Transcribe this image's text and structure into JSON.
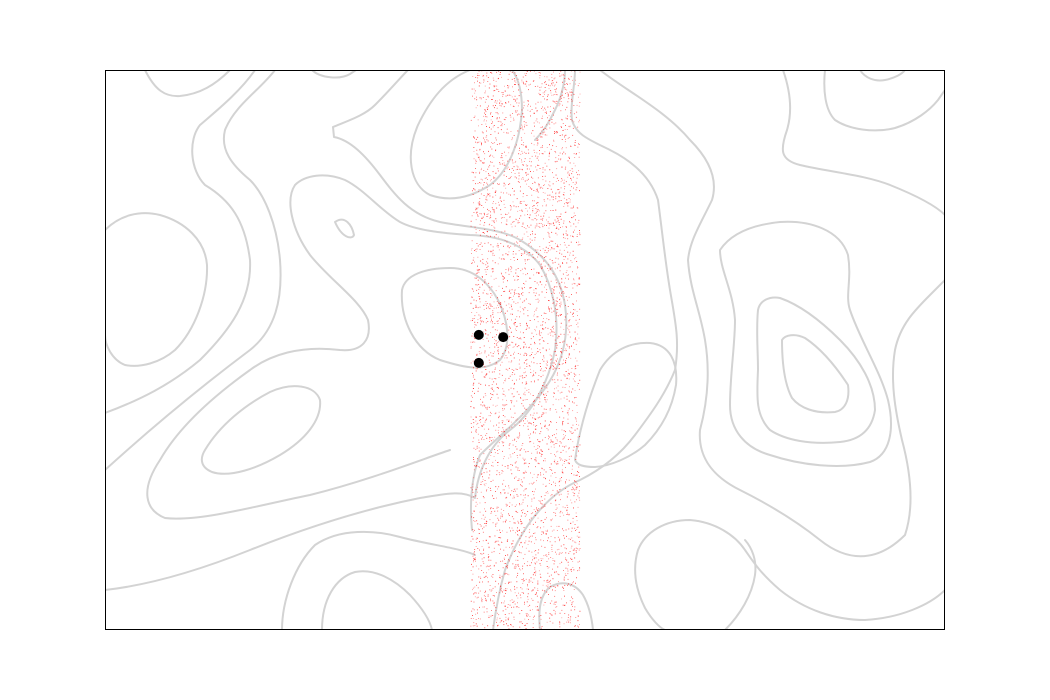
{
  "chart_data": {
    "type": "scatter",
    "title": "",
    "xlabel": "",
    "ylabel": "",
    "axes_visible": false,
    "grid": false,
    "legend": "none",
    "colors": {
      "background": "#ffffff",
      "frame": "#000000",
      "contour": "#d3d3d3",
      "samples": "#ff0000",
      "markers": "#000000"
    },
    "xlim": [
      0,
      1
    ],
    "ylim": [
      0,
      1
    ],
    "sample_band": {
      "x_min": 0.435,
      "x_max": 0.565,
      "count": 4200,
      "seed": 7
    },
    "markers": [
      {
        "x": 0.445,
        "y": 0.527
      },
      {
        "x": 0.474,
        "y": 0.523
      },
      {
        "x": 0.445,
        "y": 0.477
      }
    ]
  }
}
